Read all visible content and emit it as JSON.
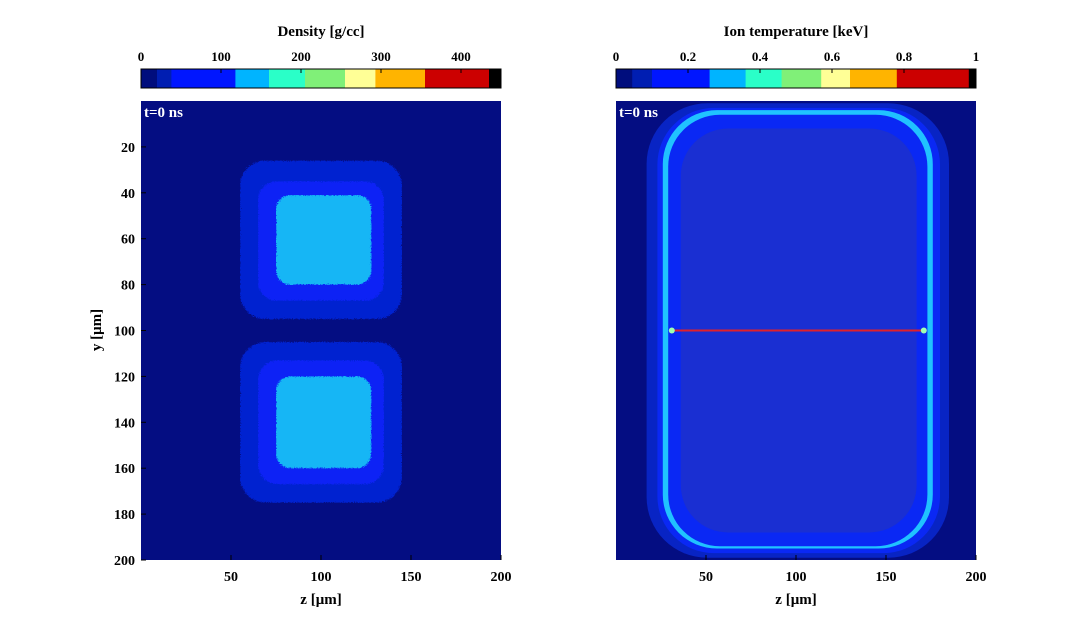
{
  "chart_data": [
    {
      "type": "heatmap",
      "title": "Density [g/cc]",
      "time_label": "t=0 ns",
      "xlabel": "z [μm]",
      "ylabel": "y [μm]",
      "xlim": [
        0,
        200
      ],
      "ylim": [
        200,
        0
      ],
      "x_ticks": [
        50,
        100,
        150,
        200
      ],
      "y_ticks": [
        20,
        40,
        60,
        80,
        100,
        120,
        140,
        160,
        180,
        200
      ],
      "colorbar": {
        "range": [
          0,
          450
        ],
        "ticks": [
          0,
          100,
          200,
          300,
          400
        ],
        "bands": [
          {
            "from": 0,
            "to": 20,
            "color": "#000d7d"
          },
          {
            "from": 20,
            "to": 38,
            "color": "#001eb2"
          },
          {
            "from": 38,
            "to": 118,
            "color": "#0016ff"
          },
          {
            "from": 118,
            "to": 160,
            "color": "#00b4ff"
          },
          {
            "from": 160,
            "to": 205,
            "color": "#2affc8"
          },
          {
            "from": 205,
            "to": 255,
            "color": "#80f078"
          },
          {
            "from": 255,
            "to": 293,
            "color": "#ffff96"
          },
          {
            "from": 293,
            "to": 355,
            "color": "#ffb400"
          },
          {
            "from": 355,
            "to": 435,
            "color": "#cc0000"
          },
          {
            "from": 435,
            "to": 450,
            "color": "#000000"
          }
        ]
      },
      "regions": [
        {
          "label": "background",
          "value": 8,
          "color": "#040d82"
        },
        {
          "label": "cube-1-outer-shell",
          "value": 30,
          "color": "#0520d0",
          "z": [
            55,
            145
          ],
          "y": [
            26,
            95
          ]
        },
        {
          "label": "cube-1-mid-shell",
          "value": 60,
          "color": "#1024f5",
          "z": [
            65,
            135
          ],
          "y": [
            35,
            87
          ]
        },
        {
          "label": "cube-1-core",
          "value": 135,
          "color": "#12b6f5",
          "z": [
            75,
            128
          ],
          "y": [
            41,
            80
          ]
        },
        {
          "label": "cube-2-outer-shell",
          "value": 30,
          "color": "#0520d0",
          "z": [
            55,
            145
          ],
          "y": [
            105,
            175
          ]
        },
        {
          "label": "cube-2-mid-shell",
          "value": 60,
          "color": "#1024f5",
          "z": [
            65,
            135
          ],
          "y": [
            113,
            167
          ]
        },
        {
          "label": "cube-2-core",
          "value": 135,
          "color": "#12b6f5",
          "z": [
            75,
            128
          ],
          "y": [
            120,
            160
          ]
        }
      ]
    },
    {
      "type": "heatmap",
      "title": "Ion temperature [keV]",
      "time_label": "t=0 ns",
      "xlabel": "z [μm]",
      "ylabel": "",
      "xlim": [
        0,
        200
      ],
      "ylim": [
        200,
        0
      ],
      "x_ticks": [
        50,
        100,
        150,
        200
      ],
      "y_ticks": [],
      "colorbar": {
        "range": [
          0,
          1
        ],
        "ticks": [
          0,
          0.2,
          0.4,
          0.6,
          0.8,
          1
        ],
        "tick_labels": [
          "0",
          "0.2",
          "0.4",
          "0.6",
          "0.8",
          "1"
        ],
        "bands": [
          {
            "from": 0,
            "to": 0.045,
            "color": "#000d7d"
          },
          {
            "from": 0.045,
            "to": 0.1,
            "color": "#001eb2"
          },
          {
            "from": 0.1,
            "to": 0.26,
            "color": "#0016ff"
          },
          {
            "from": 0.26,
            "to": 0.36,
            "color": "#00b4ff"
          },
          {
            "from": 0.36,
            "to": 0.46,
            "color": "#2affc8"
          },
          {
            "from": 0.46,
            "to": 0.57,
            "color": "#80f078"
          },
          {
            "from": 0.57,
            "to": 0.65,
            "color": "#ffff96"
          },
          {
            "from": 0.65,
            "to": 0.78,
            "color": "#ffb400"
          },
          {
            "from": 0.78,
            "to": 0.98,
            "color": "#cc0000"
          },
          {
            "from": 0.98,
            "to": 1,
            "color": "#000000"
          }
        ]
      },
      "regions": [
        {
          "label": "background",
          "value": 0.02,
          "color": "#040d82"
        },
        {
          "label": "halo",
          "value": 0.06,
          "color": "#0824c4",
          "z": [
            17,
            185
          ],
          "y": [
            1,
            199
          ]
        },
        {
          "label": "outer-band",
          "value": 0.15,
          "color": "#0a28f4",
          "z": [
            23,
            180
          ],
          "y": [
            3,
            197
          ]
        },
        {
          "label": "shock-front",
          "value": 0.33,
          "color": "#20c2ff",
          "z": [
            26,
            176
          ],
          "y": [
            4,
            195
          ]
        },
        {
          "label": "inner-band",
          "value": 0.15,
          "color": "#0a28f4",
          "z": [
            29,
            173
          ],
          "y": [
            6,
            194
          ]
        },
        {
          "label": "interior",
          "value": 0.1,
          "color": "#1a2fd2",
          "z": [
            36,
            167
          ],
          "y": [
            12,
            188
          ]
        },
        {
          "label": "midplane-hot-line",
          "value": 0.85,
          "color": "#e0202a",
          "z": [
            31,
            171
          ],
          "y": [
            100,
            100
          ]
        }
      ]
    }
  ]
}
